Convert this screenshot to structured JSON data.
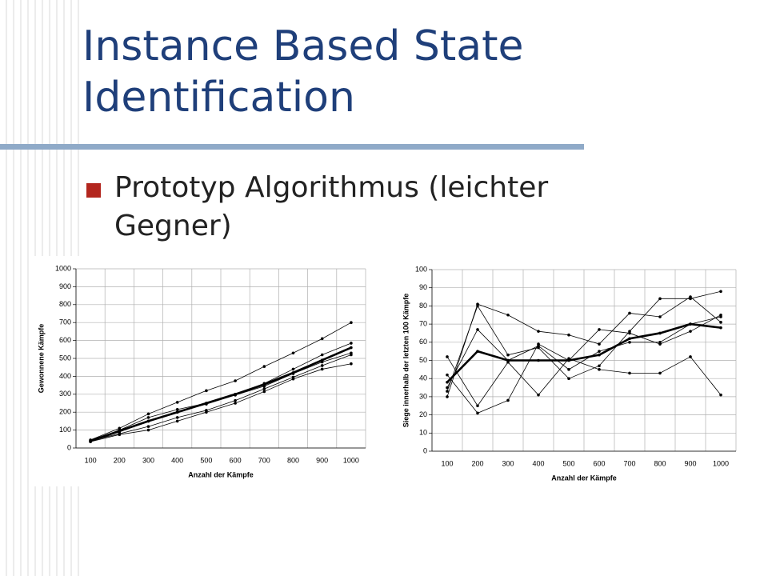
{
  "slide": {
    "title": "Instance Based State Identification",
    "bullets": [
      "Prototyp Algorithmus (leichter Gegner)"
    ]
  },
  "chart_data": [
    {
      "type": "line",
      "categories": [
        100,
        200,
        300,
        400,
        500,
        600,
        700,
        800,
        900,
        1000
      ],
      "xlabel": "Anzahl der Kämpfe",
      "ylabel": "Gewonnene Kämpfe",
      "ylim": [
        0,
        1000
      ],
      "yticks": [
        0,
        100,
        200,
        300,
        400,
        500,
        600,
        700,
        800,
        900,
        1000
      ],
      "grid": true,
      "series": [
        {
          "color": "#000000",
          "width": 0.8,
          "values": [
            45,
            110,
            190,
            255,
            320,
            375,
            455,
            530,
            610,
            700
          ]
        },
        {
          "color": "#000000",
          "width": 0.8,
          "values": [
            40,
            100,
            170,
            215,
            250,
            300,
            360,
            440,
            520,
            585
          ]
        },
        {
          "color": "#000000",
          "width": 0.8,
          "values": [
            35,
            90,
            150,
            200,
            245,
            295,
            345,
            415,
            480,
            530
          ]
        },
        {
          "color": "#000000",
          "width": 0.8,
          "values": [
            40,
            80,
            120,
            170,
            210,
            265,
            330,
            395,
            460,
            520
          ]
        },
        {
          "color": "#000000",
          "width": 0.8,
          "values": [
            35,
            75,
            100,
            150,
            200,
            250,
            315,
            385,
            440,
            470
          ]
        },
        {
          "color": "#000000",
          "width": 2.6,
          "values": [
            40,
            95,
            150,
            200,
            250,
            300,
            355,
            420,
            490,
            560
          ]
        }
      ]
    },
    {
      "type": "line",
      "categories": [
        100,
        200,
        300,
        400,
        500,
        600,
        700,
        800,
        900,
        1000
      ],
      "xlabel": "Anzahl der Kämpfe",
      "ylabel": "Siege innerhalb der letzten 100 Kämpfe",
      "ylim": [
        0,
        100
      ],
      "yticks": [
        0,
        10,
        20,
        30,
        40,
        50,
        60,
        70,
        80,
        90,
        100
      ],
      "grid": true,
      "series": [
        {
          "color": "#000000",
          "width": 0.8,
          "values": [
            30,
            81,
            75,
            66,
            64,
            59,
            76,
            74,
            85,
            71
          ]
        },
        {
          "color": "#000000",
          "width": 0.8,
          "values": [
            33,
            80,
            53,
            57,
            40,
            47,
            66,
            84,
            84,
            88
          ]
        },
        {
          "color": "#000000",
          "width": 0.8,
          "values": [
            42,
            21,
            28,
            59,
            50,
            67,
            65,
            59,
            66,
            75
          ]
        },
        {
          "color": "#000000",
          "width": 0.8,
          "values": [
            52,
            25,
            49,
            31,
            51,
            45,
            43,
            43,
            52,
            31
          ]
        },
        {
          "color": "#000000",
          "width": 0.8,
          "values": [
            35,
            67,
            50,
            58,
            45,
            55,
            60,
            60,
            70,
            74
          ]
        },
        {
          "color": "#000000",
          "width": 2.6,
          "values": [
            38,
            55,
            50,
            50,
            50,
            53,
            62,
            65,
            70,
            68
          ]
        }
      ]
    }
  ]
}
